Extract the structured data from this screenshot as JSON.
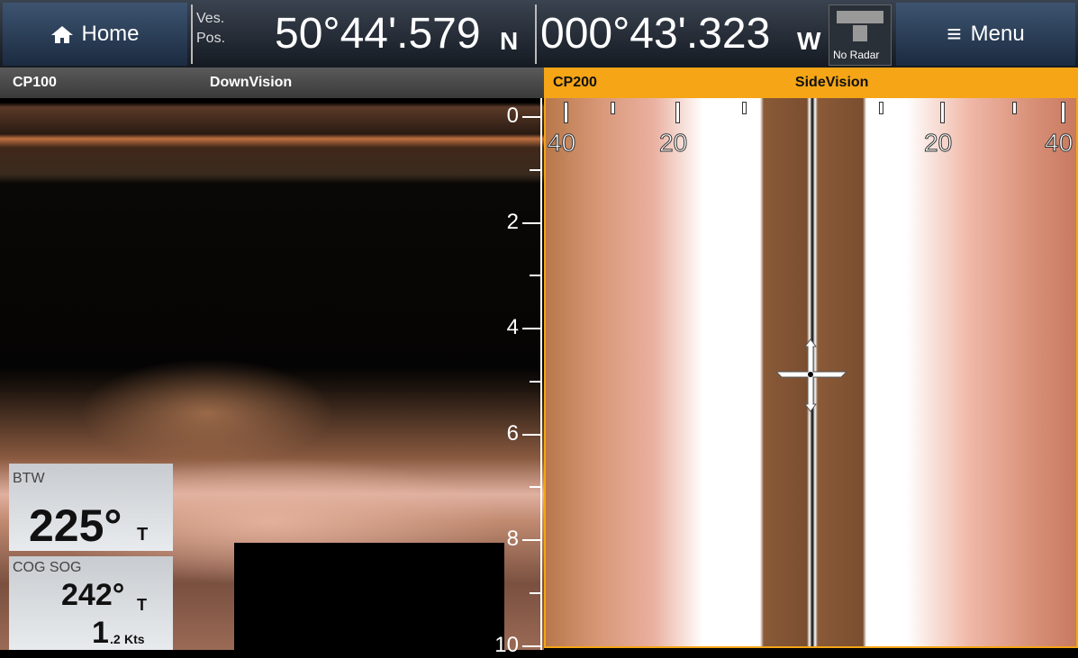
{
  "top_bar": {
    "home": "Home",
    "vessel_position_label": [
      "Ves.",
      "Pos."
    ],
    "latitude": "50°44'.579",
    "lat_hemisphere": "N",
    "longitude": "000°43'.323",
    "lon_hemisphere": "W",
    "radar_status": "No Radar",
    "menu": "Menu"
  },
  "left_pane": {
    "source": "CP100",
    "mode": "DownVision",
    "depth_scale": [
      "0",
      "2",
      "4",
      "6",
      "8",
      "10"
    ]
  },
  "right_pane": {
    "source": "CP200",
    "mode": "SideVision",
    "range_scale": [
      "40",
      "20",
      "20",
      "40"
    ]
  },
  "data_boxes": [
    {
      "label": "BTW",
      "value": "225°",
      "unit": "T"
    },
    {
      "label": "COG SOG",
      "cog": "242°",
      "cog_unit": "T",
      "sog_integer": "1",
      "sog_decimal": ".2",
      "sog_unit": "Kts"
    }
  ]
}
